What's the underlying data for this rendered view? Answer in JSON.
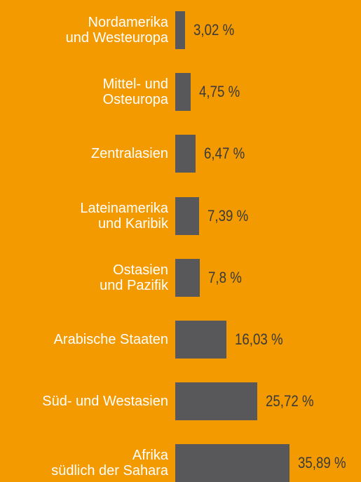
{
  "chart_data": {
    "type": "bar",
    "orientation": "horizontal",
    "categories": [
      "Nordamerika\nund Westeuropa",
      "Mittel- und\nOsteuropa",
      "Zentralasien",
      "Lateinamerika\nund Karibik",
      "Ostasien\nund Pazifik",
      "Arabische Staaten",
      "Süd- und Westasien",
      "Afrika\nsüdlich der Sahara"
    ],
    "values": [
      3.02,
      4.75,
      6.47,
      7.39,
      7.8,
      16.03,
      25.72,
      35.89
    ],
    "value_labels": [
      "3,02 %",
      "4,75 %",
      "6,47 %",
      "7,39 %",
      "7,8 %",
      "16,03 %",
      "25,72 %",
      "35,89 %"
    ],
    "color": "#58585a"
  }
}
